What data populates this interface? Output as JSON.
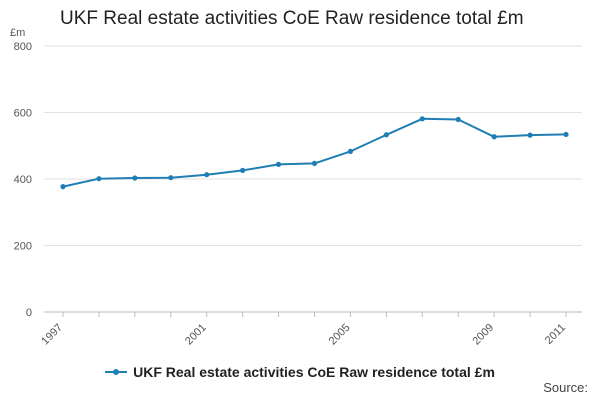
{
  "chart_data": {
    "type": "line",
    "title": "UKF Real estate activities CoE Raw residence total £m",
    "ylabel": "£m",
    "xlabel": "",
    "x": [
      "1997",
      "1998",
      "1999",
      "2000",
      "2001",
      "2002",
      "2003",
      "2004",
      "2005",
      "2006",
      "2007",
      "2008",
      "2009",
      "2010",
      "2011"
    ],
    "x_tick_labels": [
      "1997",
      "2001",
      "2005",
      "2009",
      "2011"
    ],
    "y_ticks": [
      0,
      200,
      400,
      600,
      800
    ],
    "ylim": [
      0,
      800
    ],
    "grid": true,
    "legend_position": "bottom",
    "series": [
      {
        "name": "UKF Real estate activities CoE Raw residence total £m",
        "color": "#1f7eb4",
        "values": [
          377,
          401,
          403,
          404,
          413,
          426,
          444,
          447,
          483,
          533,
          581,
          579,
          527,
          532,
          534
        ]
      }
    ]
  },
  "source_label": "Source:"
}
